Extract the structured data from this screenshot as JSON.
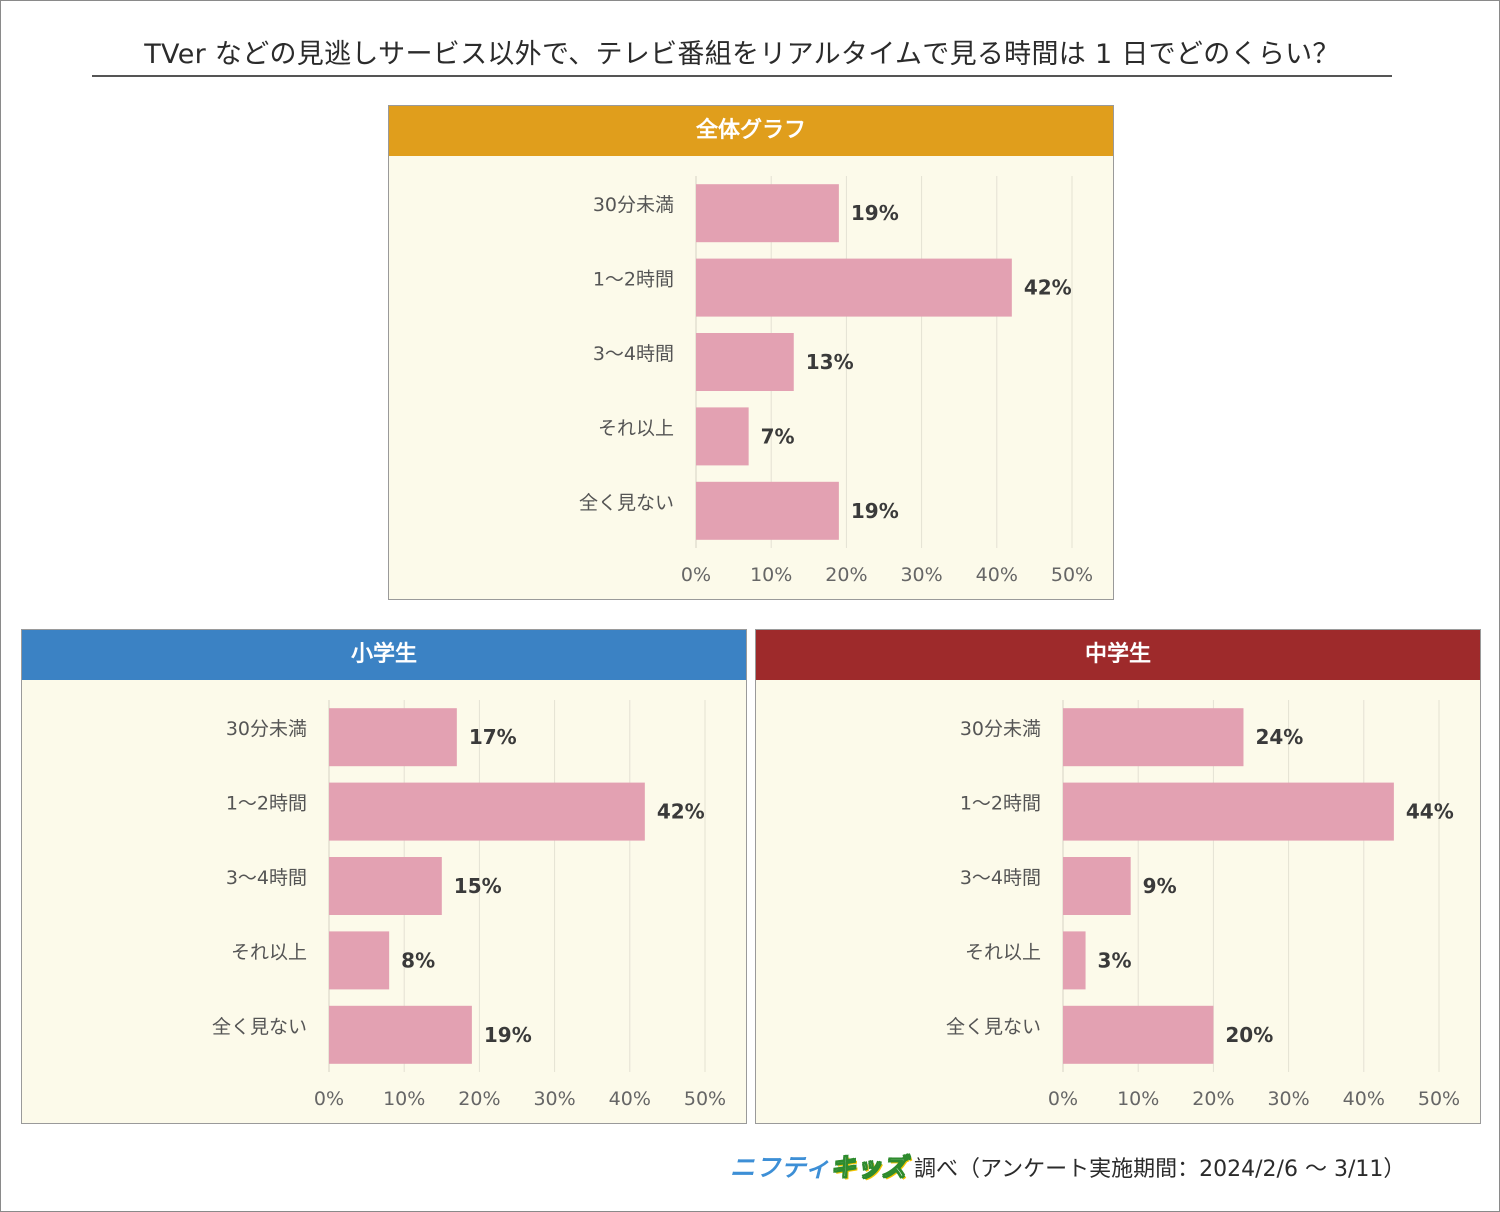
{
  "title": "TVer などの見逃しサービス以外で、テレビ番組をリアルタイムで見る時間は 1 日でどのくらい？",
  "colors": {
    "bar": "#e3a1b2",
    "panel_bg": "#fcfaea",
    "grid": "#e4e1d3",
    "header_overall": "#e09e1c",
    "header_elementary": "#3b82c4",
    "header_junior": "#9e2a2b"
  },
  "footer": {
    "brand_part1": "ニフティ",
    "brand_part2": "キッズ",
    "text": "調べ（アンケート実施期間：2024/2/6 ～ 3/11）"
  },
  "chart_data": [
    {
      "type": "bar",
      "orientation": "horizontal",
      "title": "全体グラフ",
      "header_color": "#e09e1c",
      "categories": [
        "30分未満",
        "1～2時間",
        "3～4時間",
        "それ以上",
        "全く見ない"
      ],
      "values": [
        19,
        42,
        13,
        7,
        19
      ],
      "value_labels": [
        "19%",
        "42%",
        "13%",
        "7%",
        "19%"
      ],
      "xlim": [
        0,
        50
      ],
      "x_ticks": [
        "0%",
        "10%",
        "20%",
        "30%",
        "40%",
        "50%"
      ],
      "grid": true
    },
    {
      "type": "bar",
      "orientation": "horizontal",
      "title": "小学生",
      "header_color": "#3b82c4",
      "categories": [
        "30分未満",
        "1～2時間",
        "3～4時間",
        "それ以上",
        "全く見ない"
      ],
      "values": [
        17,
        42,
        15,
        8,
        19
      ],
      "value_labels": [
        "17%",
        "42%",
        "15%",
        "8%",
        "19%"
      ],
      "xlim": [
        0,
        50
      ],
      "x_ticks": [
        "0%",
        "10%",
        "20%",
        "30%",
        "40%",
        "50%"
      ],
      "grid": true
    },
    {
      "type": "bar",
      "orientation": "horizontal",
      "title": "中学生",
      "header_color": "#9e2a2b",
      "categories": [
        "30分未満",
        "1～2時間",
        "3～4時間",
        "それ以上",
        "全く見ない"
      ],
      "values": [
        24,
        44,
        9,
        3,
        20
      ],
      "value_labels": [
        "24%",
        "44%",
        "9%",
        "3%",
        "20%"
      ],
      "xlim": [
        0,
        50
      ],
      "x_ticks": [
        "0%",
        "10%",
        "20%",
        "30%",
        "40%",
        "50%"
      ],
      "grid": true
    }
  ]
}
